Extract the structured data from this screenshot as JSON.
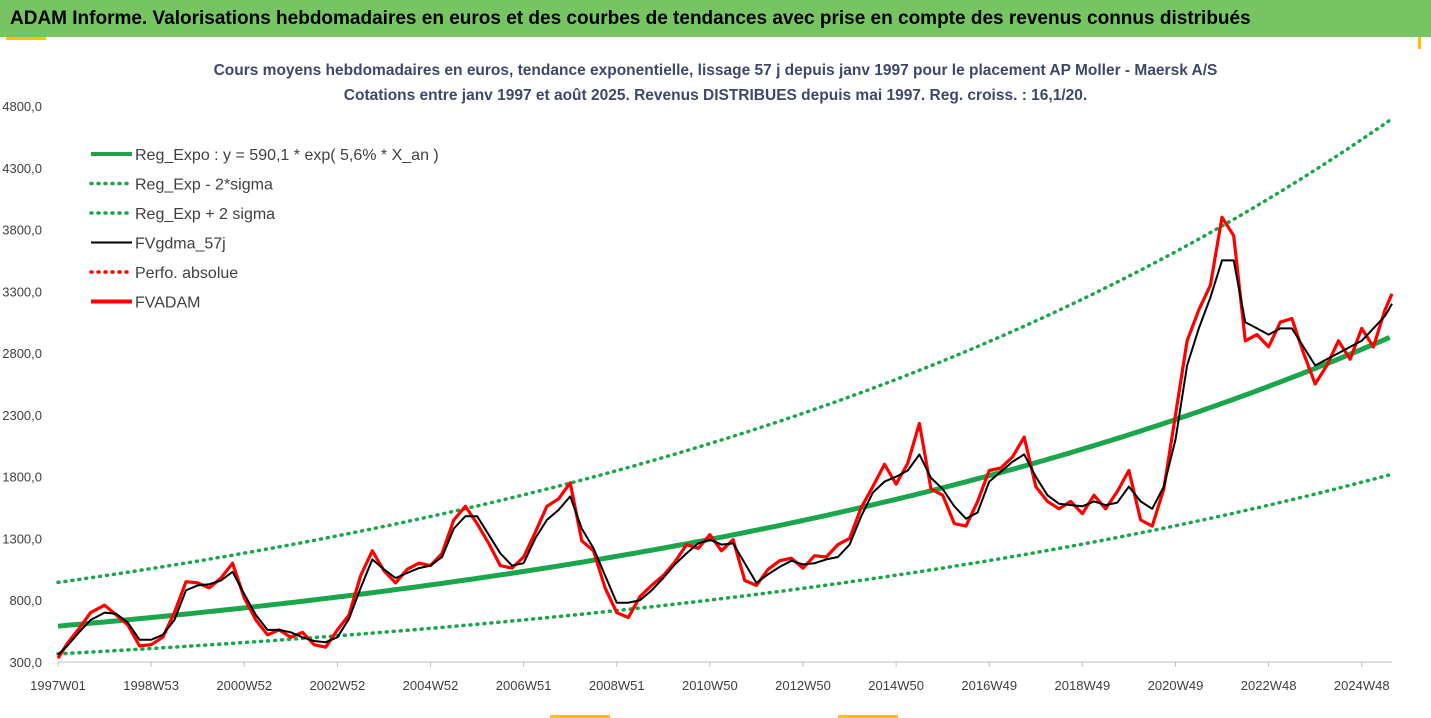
{
  "banner": {
    "title": "ADAM Informe. Valorisations hebdomadaires en euros et des courbes de tendances avec prise en compte des revenus connus distribués"
  },
  "colors": {
    "banner_bg": "#76c462",
    "reg_expo": "#1aa64a",
    "sigma_bands": "#1aa64a",
    "fvgdma": "#000000",
    "perfo": "#ff0000",
    "fvadam": "#ff0000",
    "title_text": "#404868",
    "accent_marks": "#ffc000"
  },
  "chart_data": {
    "type": "line",
    "title": "Cours moyens hebdomadaires en euros, tendance exponentielle, lissage 57 j depuis janv 1997 pour le placement AP Moller - Maersk A/S",
    "subtitle": "Cotations entre janv 1997 et août 2025.  Revenus DISTRIBUES depuis mai 1997. Reg. croiss. : 16,1/20.",
    "xlabel": "",
    "ylabel": "",
    "ylim": [
      300,
      4800
    ],
    "xlim": [
      1997.0,
      2025.65
    ],
    "grid": false,
    "legend_position": "top-left",
    "y_ticks": [
      "300,0",
      "800,0",
      "1300,0",
      "1800,0",
      "2300,0",
      "2800,0",
      "3300,0",
      "3800,0",
      "4300,0",
      "4800,0"
    ],
    "x_ticks": [
      {
        "label": "1997W01",
        "x": 1997.0
      },
      {
        "label": "1998W53",
        "x": 1999.0
      },
      {
        "label": "2000W52",
        "x": 2001.0
      },
      {
        "label": "2002W52",
        "x": 2003.0
      },
      {
        "label": "2004W52",
        "x": 2005.0
      },
      {
        "label": "2006W51",
        "x": 2007.0
      },
      {
        "label": "2008W51",
        "x": 2009.0
      },
      {
        "label": "2010W50",
        "x": 2011.0
      },
      {
        "label": "2012W50",
        "x": 2013.0
      },
      {
        "label": "2014W50",
        "x": 2015.0
      },
      {
        "label": "2016W49",
        "x": 2017.0
      },
      {
        "label": "2018W49",
        "x": 2019.0
      },
      {
        "label": "2020W49",
        "x": 2021.0
      },
      {
        "label": "2022W48",
        "x": 2023.0
      },
      {
        "label": "2024W48",
        "x": 2025.0
      }
    ],
    "series": [
      {
        "name": "Reg_Expo : y = 590,1 * exp( 5,6% *  X_an )",
        "style": "solid-thick",
        "color": "#1aa64a",
        "kind": "exp",
        "a": 590.1,
        "r": 0.056,
        "factor": 1.0
      },
      {
        "name": "Reg_Exp - 2*sigma",
        "style": "dotted",
        "color": "#1aa64a",
        "kind": "exp",
        "a": 590.1,
        "r": 0.056,
        "factor": 0.62
      },
      {
        "name": "Reg_Exp + 2 sigma",
        "style": "dotted",
        "color": "#1aa64a",
        "kind": "exp",
        "a": 590.1,
        "r": 0.056,
        "factor": 1.6
      },
      {
        "name": "FVgdma_57j",
        "style": "solid",
        "color": "#000000",
        "kind": "points",
        "x": [
          1997.0,
          1997.2,
          1997.45,
          1997.7,
          1998.0,
          1998.25,
          1998.5,
          1998.75,
          1999.0,
          1999.25,
          1999.5,
          1999.75,
          2000.0,
          2000.25,
          2000.5,
          2000.75,
          2001.0,
          2001.25,
          2001.5,
          2001.75,
          2002.0,
          2002.25,
          2002.5,
          2002.75,
          2003.0,
          2003.25,
          2003.5,
          2003.75,
          2004.0,
          2004.25,
          2004.5,
          2004.75,
          2005.0,
          2005.25,
          2005.5,
          2005.75,
          2006.0,
          2006.25,
          2006.5,
          2006.75,
          2007.0,
          2007.25,
          2007.5,
          2007.75,
          2008.0,
          2008.25,
          2008.5,
          2008.75,
          2009.0,
          2009.25,
          2009.5,
          2009.75,
          2010.0,
          2010.25,
          2010.5,
          2010.75,
          2011.0,
          2011.25,
          2011.5,
          2011.75,
          2012.0,
          2012.25,
          2012.5,
          2012.75,
          2013.0,
          2013.25,
          2013.5,
          2013.75,
          2014.0,
          2014.25,
          2014.5,
          2014.75,
          2015.0,
          2015.25,
          2015.5,
          2015.75,
          2016.0,
          2016.25,
          2016.5,
          2016.75,
          2017.0,
          2017.25,
          2017.5,
          2017.75,
          2018.0,
          2018.25,
          2018.5,
          2018.75,
          2019.0,
          2019.25,
          2019.5,
          2019.75,
          2020.0,
          2020.25,
          2020.5,
          2020.75,
          2021.0,
          2021.25,
          2021.5,
          2021.75,
          2022.0,
          2022.25,
          2022.5,
          2022.75,
          2023.0,
          2023.25,
          2023.5,
          2023.75,
          2024.0,
          2024.25,
          2024.5,
          2024.75,
          2025.0,
          2025.25,
          2025.5,
          2025.65
        ],
        "y": [
          360,
          430,
          540,
          640,
          700,
          690,
          620,
          480,
          480,
          520,
          640,
          880,
          920,
          930,
          960,
          1030,
          850,
          680,
          560,
          560,
          540,
          500,
          470,
          460,
          500,
          650,
          900,
          1130,
          1050,
          980,
          1020,
          1060,
          1080,
          1150,
          1380,
          1480,
          1480,
          1330,
          1180,
          1080,
          1100,
          1300,
          1450,
          1530,
          1640,
          1380,
          1220,
          1000,
          780,
          780,
          800,
          880,
          980,
          1090,
          1180,
          1260,
          1290,
          1250,
          1260,
          1100,
          940,
          1010,
          1070,
          1120,
          1090,
          1100,
          1130,
          1150,
          1250,
          1480,
          1670,
          1760,
          1800,
          1850,
          1980,
          1790,
          1700,
          1560,
          1460,
          1510,
          1760,
          1840,
          1920,
          1980,
          1800,
          1650,
          1580,
          1570,
          1560,
          1600,
          1570,
          1590,
          1720,
          1600,
          1540,
          1720,
          2100,
          2700,
          3000,
          3250,
          3550,
          3550,
          3050,
          3000,
          2950,
          3000,
          3000,
          2850,
          2700,
          2750,
          2800,
          2850,
          2900,
          3000,
          3100,
          3200
        ]
      },
      {
        "name": "Perfo. absolue",
        "style": "dotted",
        "color": "#ff0000",
        "kind": "hidden"
      },
      {
        "name": "FVADAM",
        "style": "solid-thick",
        "color": "#ff0000",
        "kind": "points",
        "x": [
          1997.0,
          1997.2,
          1997.45,
          1997.7,
          1998.0,
          1998.25,
          1998.5,
          1998.75,
          1999.0,
          1999.25,
          1999.5,
          1999.75,
          2000.0,
          2000.25,
          2000.5,
          2000.75,
          2001.0,
          2001.25,
          2001.5,
          2001.75,
          2002.0,
          2002.25,
          2002.5,
          2002.75,
          2003.0,
          2003.25,
          2003.5,
          2003.75,
          2004.0,
          2004.25,
          2004.5,
          2004.75,
          2005.0,
          2005.25,
          2005.5,
          2005.75,
          2006.0,
          2006.25,
          2006.5,
          2006.75,
          2007.0,
          2007.25,
          2007.5,
          2007.75,
          2008.0,
          2008.25,
          2008.5,
          2008.75,
          2009.0,
          2009.25,
          2009.5,
          2009.75,
          2010.0,
          2010.25,
          2010.5,
          2010.75,
          2011.0,
          2011.25,
          2011.5,
          2011.75,
          2012.0,
          2012.25,
          2012.5,
          2012.75,
          2013.0,
          2013.25,
          2013.5,
          2013.75,
          2014.0,
          2014.25,
          2014.5,
          2014.75,
          2015.0,
          2015.25,
          2015.5,
          2015.75,
          2016.0,
          2016.25,
          2016.5,
          2016.75,
          2017.0,
          2017.25,
          2017.5,
          2017.75,
          2018.0,
          2018.25,
          2018.5,
          2018.75,
          2019.0,
          2019.25,
          2019.5,
          2019.75,
          2020.0,
          2020.25,
          2020.5,
          2020.75,
          2021.0,
          2021.25,
          2021.5,
          2021.75,
          2022.0,
          2022.25,
          2022.5,
          2022.75,
          2023.0,
          2023.25,
          2023.5,
          2023.75,
          2024.0,
          2024.25,
          2024.5,
          2024.75,
          2025.0,
          2025.25,
          2025.5,
          2025.65
        ],
        "y": [
          330,
          450,
          570,
          700,
          760,
          680,
          600,
          430,
          440,
          500,
          700,
          950,
          940,
          900,
          980,
          1100,
          820,
          640,
          520,
          560,
          500,
          540,
          440,
          420,
          560,
          680,
          1000,
          1200,
          1040,
          940,
          1050,
          1100,
          1080,
          1180,
          1450,
          1560,
          1420,
          1260,
          1080,
          1060,
          1150,
          1350,
          1560,
          1620,
          1750,
          1280,
          1200,
          900,
          700,
          660,
          830,
          920,
          1000,
          1110,
          1250,
          1220,
          1330,
          1200,
          1290,
          960,
          920,
          1050,
          1120,
          1140,
          1060,
          1160,
          1150,
          1250,
          1300,
          1550,
          1720,
          1900,
          1740,
          1910,
          2230,
          1700,
          1650,
          1420,
          1400,
          1600,
          1850,
          1870,
          1960,
          2120,
          1720,
          1600,
          1540,
          1600,
          1500,
          1650,
          1540,
          1680,
          1850,
          1450,
          1400,
          1700,
          2300,
          2900,
          3150,
          3350,
          3900,
          3750,
          2900,
          2950,
          2850,
          3050,
          3080,
          2800,
          2550,
          2700,
          2900,
          2750,
          3000,
          2850,
          3150,
          3280
        ]
      }
    ]
  }
}
